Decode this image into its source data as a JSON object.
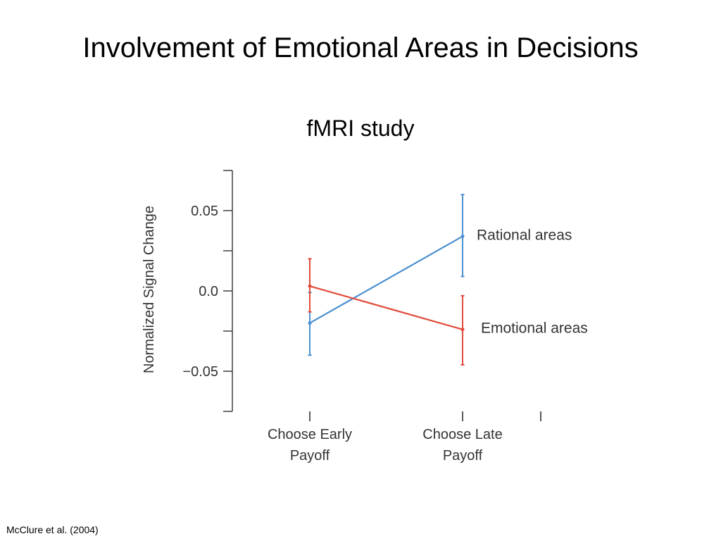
{
  "slide": {
    "title": "Involvement of Emotional Areas in Decisions",
    "subtitle": "fMRI study",
    "citation": "McClure et al. (2004)"
  },
  "chart_data": {
    "type": "line",
    "ylabel": "Normalized Signal Change",
    "ylim": [
      -0.075,
      0.075
    ],
    "yticks": [
      {
        "value": 0.05,
        "label": "0.05"
      },
      {
        "value": 0.0,
        "label": "0.0"
      },
      {
        "value": -0.05,
        "label": "−0.05"
      }
    ],
    "categories": [
      [
        "Choose Early",
        "Payoff"
      ],
      [
        "Choose Late",
        "Payoff"
      ]
    ],
    "grid": false,
    "series": [
      {
        "name": "Rational areas",
        "color": "#4a90d0",
        "values": [
          -0.02,
          0.034
        ],
        "error_low": [
          -0.04,
          0.009
        ],
        "error_high": [
          -0.001,
          0.06
        ]
      },
      {
        "name": "Emotional areas",
        "color": "#e04b3a",
        "values": [
          0.003,
          -0.024
        ],
        "error_low": [
          -0.013,
          -0.046
        ],
        "error_high": [
          0.02,
          -0.003
        ]
      }
    ]
  }
}
